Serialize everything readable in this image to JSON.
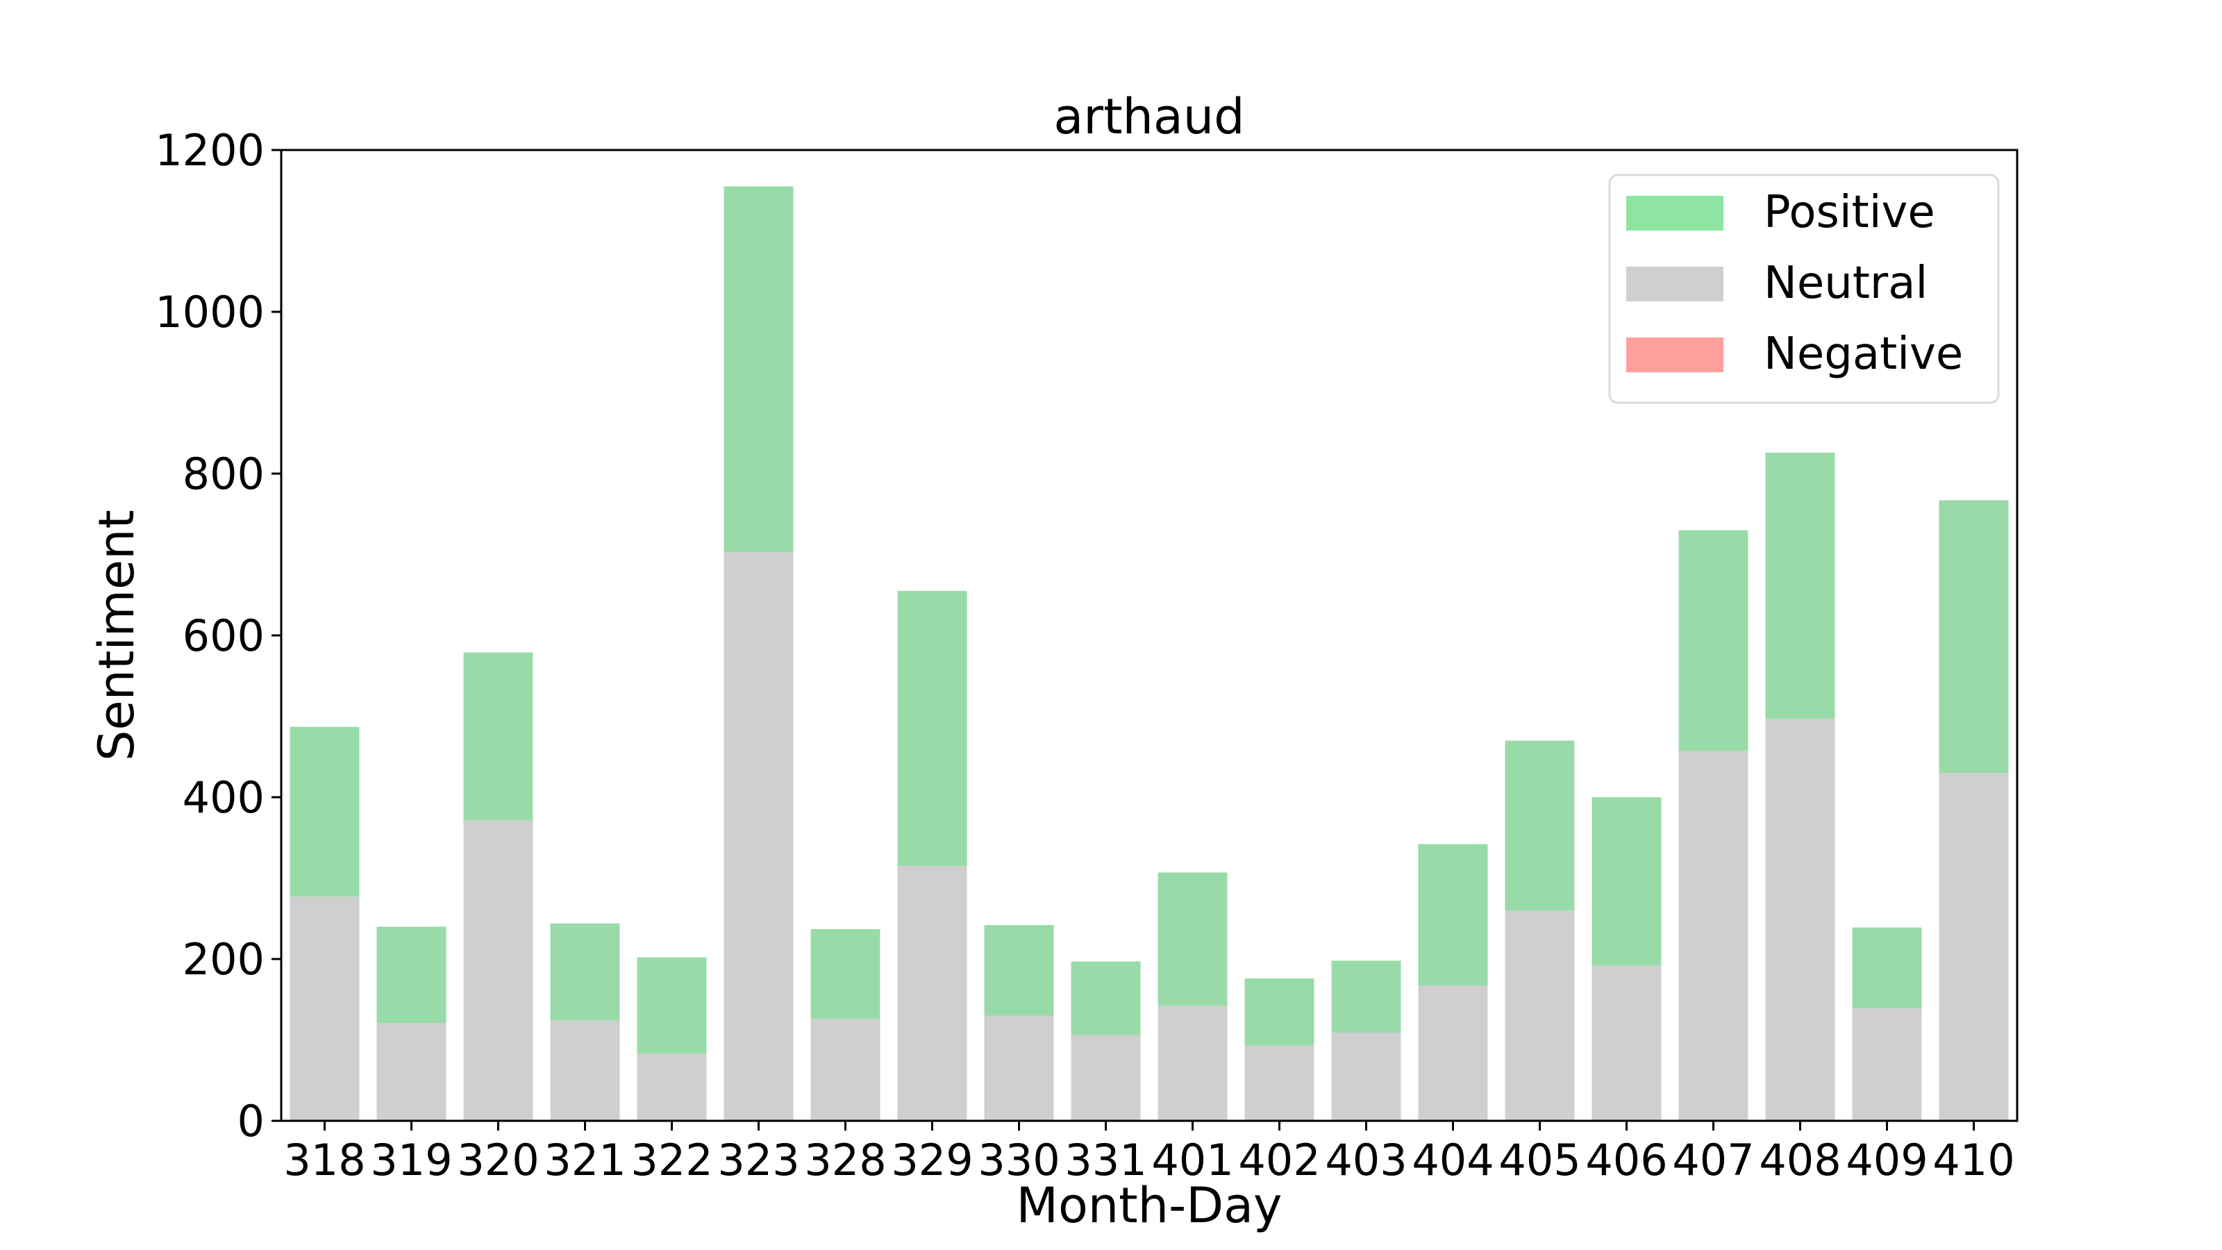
{
  "chart_data": {
    "type": "bar",
    "stacked": true,
    "title": "arthaud",
    "xlabel": "Month-Day",
    "ylabel": "Sentiment",
    "ylim": [
      0,
      1200
    ],
    "yticks": [
      0,
      200,
      400,
      600,
      800,
      1000,
      1200
    ],
    "categories": [
      "318",
      "319",
      "320",
      "321",
      "322",
      "323",
      "328",
      "329",
      "330",
      "331",
      "401",
      "402",
      "403",
      "404",
      "405",
      "406",
      "407",
      "408",
      "409",
      "410"
    ],
    "series": [
      {
        "name": "Negative",
        "color": "#ff9f9b",
        "values": [
          0,
          0,
          0,
          0,
          0,
          0,
          0,
          0,
          0,
          0,
          0,
          0,
          0,
          0,
          0,
          0,
          0,
          0,
          0,
          0
        ]
      },
      {
        "name": "Neutral",
        "color": "#cfcfcf",
        "values": [
          277,
          121,
          371,
          124,
          83,
          703,
          126,
          315,
          130,
          106,
          142,
          93,
          109,
          167,
          260,
          192,
          457,
          497,
          139,
          430
        ]
      },
      {
        "name": "Positive",
        "color": "#99dba8",
        "values": [
          210,
          119,
          208,
          120,
          119,
          452,
          111,
          340,
          112,
          91,
          165,
          83,
          89,
          175,
          210,
          208,
          273,
          329,
          100,
          337
        ]
      }
    ],
    "legend": {
      "position": "top-right",
      "entries": [
        {
          "label": "Positive",
          "color": "#8de5a1"
        },
        {
          "label": "Neutral",
          "color": "#cfcfcf"
        },
        {
          "label": "Negative",
          "color": "#ff9f9b"
        }
      ]
    },
    "grid": false
  }
}
